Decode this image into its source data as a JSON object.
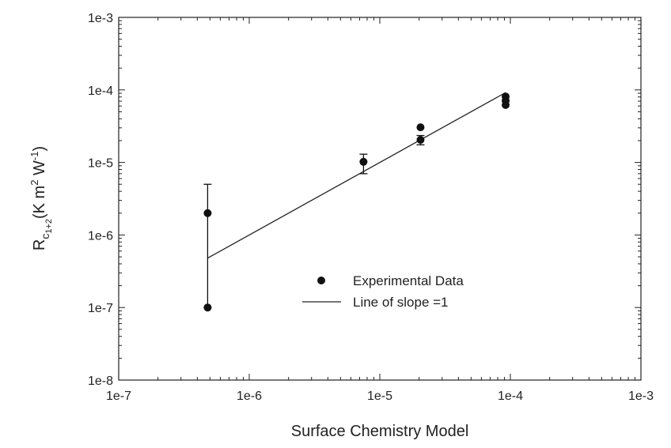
{
  "chart_data": {
    "type": "scatter",
    "title": "",
    "xlabel": "Surface Chemistry Model",
    "ylabel": {
      "base": "R",
      "sub": "c",
      "subsub": "1+2",
      "paren_open": "(K m",
      "sup1": "2",
      "mid": " W",
      "sup2": "-1",
      "paren_close": ")"
    },
    "xscale": "log",
    "yscale": "log",
    "xlim": [
      1e-07,
      0.001
    ],
    "ylim": [
      1e-08,
      0.001
    ],
    "x_ticks": [
      "1e-7",
      "1e-6",
      "1e-5",
      "1e-4",
      "1e-3"
    ],
    "y_ticks": [
      "1e-8",
      "1e-7",
      "1e-6",
      "1e-5",
      "1e-4",
      "1e-3"
    ],
    "grid": false,
    "series": [
      {
        "name": "Experimental Data",
        "kind": "points",
        "color": "#111111",
        "points": [
          {
            "x": 4.8e-07,
            "y": 2e-06,
            "err_low": 1e-07,
            "err_high": 5e-06
          },
          {
            "x": 4.8e-07,
            "y": 1e-07
          },
          {
            "x": 7.5e-06,
            "y": 1.02e-05,
            "err_low": 7e-06,
            "err_high": 1.3e-05
          },
          {
            "x": 2.05e-05,
            "y": 3.05e-05
          },
          {
            "x": 2.05e-05,
            "y": 2.05e-05,
            "err_low": 1.75e-05,
            "err_high": 2.35e-05
          },
          {
            "x": 9.2e-05,
            "y": 8.1e-05
          },
          {
            "x": 9.2e-05,
            "y": 7.1e-05
          },
          {
            "x": 9.2e-05,
            "y": 6.2e-05
          }
        ]
      },
      {
        "name": "Line of slope =1",
        "kind": "line",
        "color": "#222222",
        "x": [
          4.8e-07,
          9.2e-05
        ],
        "y": [
          4.8e-07,
          9.2e-05
        ]
      }
    ],
    "legend": {
      "position": "center",
      "entries": [
        "Experimental Data",
        "Line of slope =1"
      ]
    }
  }
}
